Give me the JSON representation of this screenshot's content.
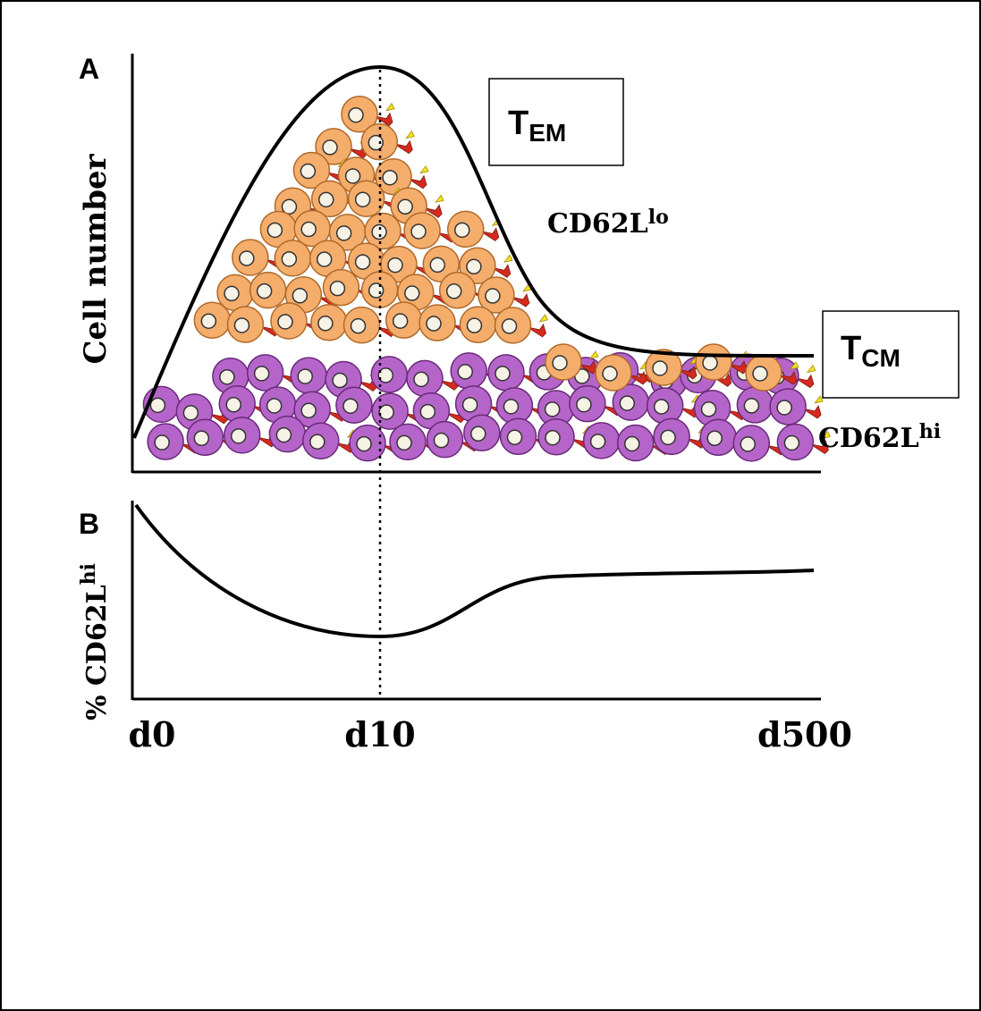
{
  "panel_a": {
    "label": "A",
    "y_axis_label": "Cell number",
    "tem_box": {
      "main": "T",
      "sub": "EM"
    },
    "tem_marker": {
      "main": "CD62L",
      "sup": "lo"
    },
    "tcm_box": {
      "main": "T",
      "sub": "CM"
    },
    "tcm_marker": {
      "main": "CD62L",
      "sup": "hi"
    }
  },
  "panel_b": {
    "label": "B",
    "y_axis_label": {
      "prefix": "% CD62L",
      "sup": "hi"
    }
  },
  "x_axis": {
    "ticks": [
      "d0",
      "d10",
      "d500"
    ]
  }
}
